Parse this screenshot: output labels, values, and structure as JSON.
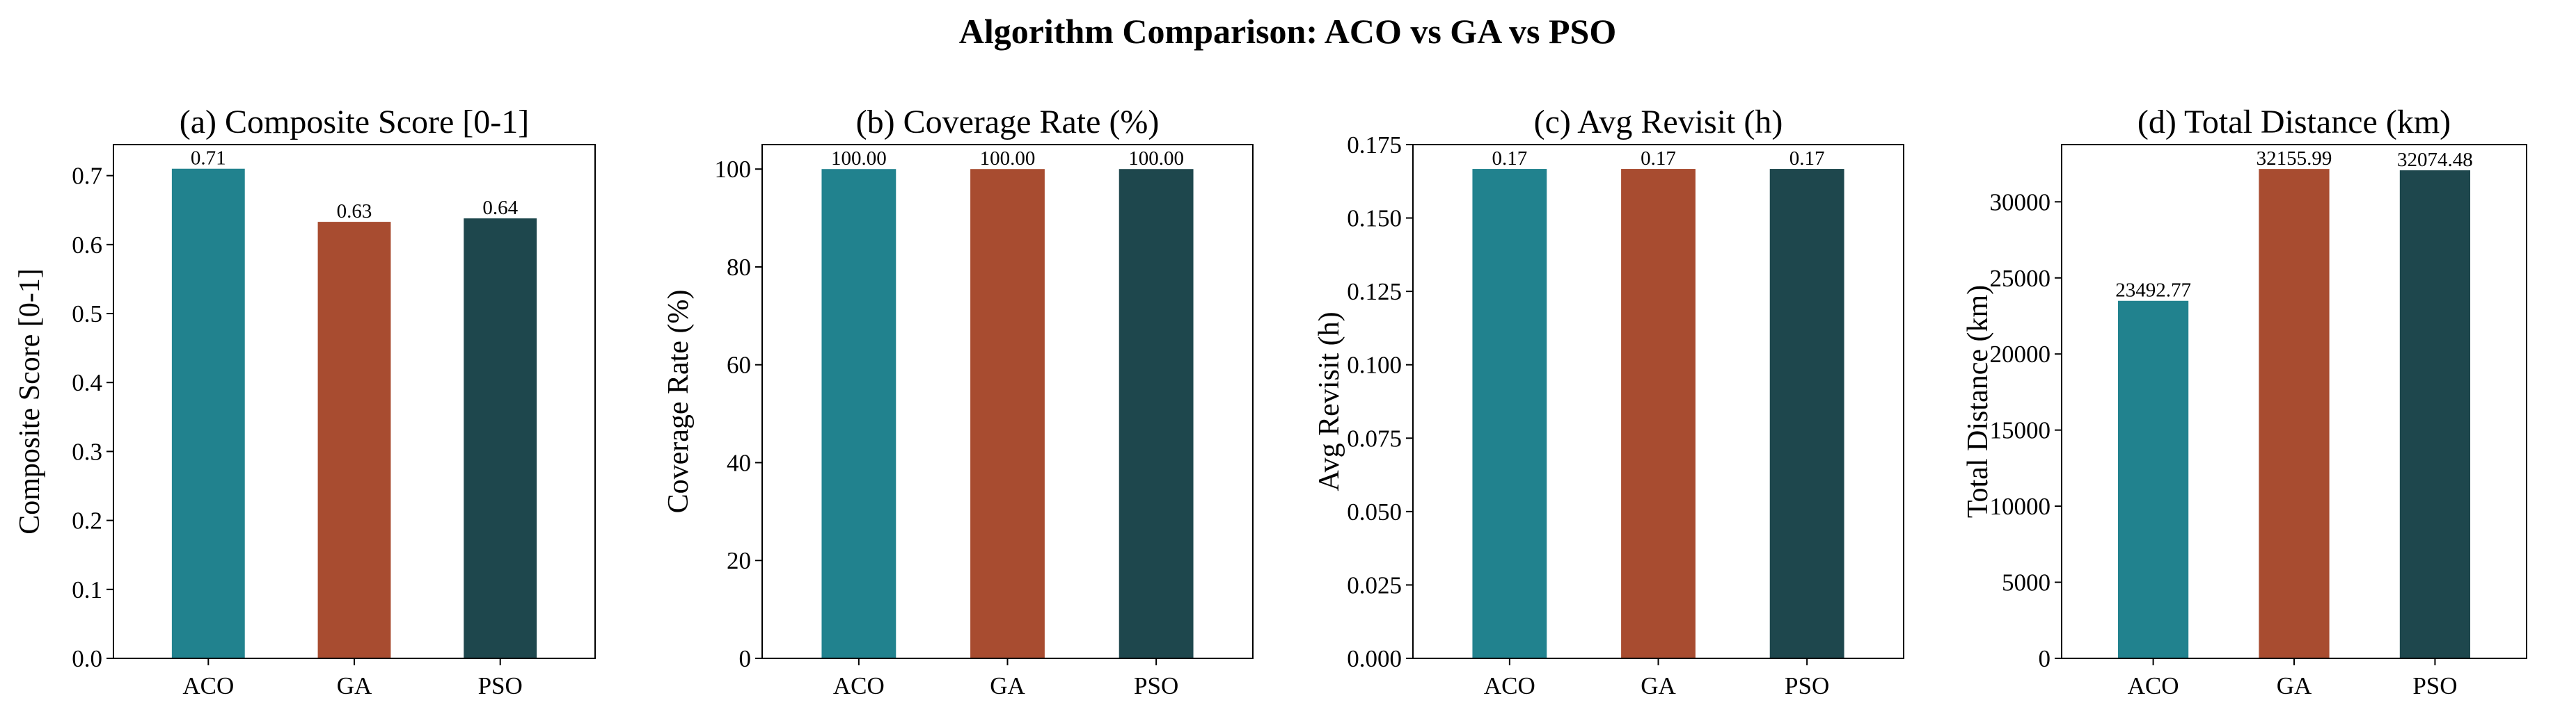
{
  "figure_title": "Algorithm Comparison: ACO vs GA vs PSO",
  "colors": {
    "ACO": "#21828E",
    "GA": "#A84C30",
    "PSO": "#1E474D"
  },
  "chart_data": [
    {
      "type": "bar",
      "title": "(a) Composite Score [0-1]",
      "xlabel": "",
      "ylabel": "Composite Score [0-1]",
      "categories": [
        "ACO",
        "GA",
        "PSO"
      ],
      "values": [
        0.71,
        0.633,
        0.638
      ],
      "data_labels": [
        "0.71",
        "0.63",
        "0.64"
      ],
      "ylim": [
        0,
        0.745
      ],
      "yticks": [
        0.0,
        0.1,
        0.2,
        0.3,
        0.4,
        0.5,
        0.6,
        0.7
      ],
      "ytick_labels": [
        "0.0",
        "0.1",
        "0.2",
        "0.3",
        "0.4",
        "0.5",
        "0.6",
        "0.7"
      ],
      "grid": false
    },
    {
      "type": "bar",
      "title": "(b) Coverage Rate (%)",
      "xlabel": "",
      "ylabel": "Coverage Rate (%)",
      "categories": [
        "ACO",
        "GA",
        "PSO"
      ],
      "values": [
        100.0,
        100.0,
        100.0
      ],
      "data_labels": [
        "100.00",
        "100.00",
        "100.00"
      ],
      "ylim": [
        0,
        105
      ],
      "yticks": [
        0,
        20,
        40,
        60,
        80,
        100
      ],
      "ytick_labels": [
        "0",
        "20",
        "40",
        "60",
        "80",
        "100"
      ],
      "grid": false
    },
    {
      "type": "bar",
      "title": "(c) Avg Revisit (h)",
      "xlabel": "",
      "ylabel": "Avg Revisit (h)",
      "categories": [
        "ACO",
        "GA",
        "PSO"
      ],
      "values": [
        0.1667,
        0.1667,
        0.1667
      ],
      "data_labels": [
        "0.17",
        "0.17",
        "0.17"
      ],
      "ylim": [
        0,
        0.175
      ],
      "yticks": [
        0.0,
        0.025,
        0.05,
        0.075,
        0.1,
        0.125,
        0.15,
        0.175
      ],
      "ytick_labels": [
        "0.000",
        "0.025",
        "0.050",
        "0.075",
        "0.100",
        "0.125",
        "0.150",
        "0.175"
      ],
      "grid": false
    },
    {
      "type": "bar",
      "title": "(d) Total Distance (km)",
      "xlabel": "",
      "ylabel": "Total Distance (km)",
      "categories": [
        "ACO",
        "GA",
        "PSO"
      ],
      "values": [
        23492.77,
        32155.99,
        32074.48
      ],
      "data_labels": [
        "23492.77",
        "32155.99",
        "32074.48"
      ],
      "ylim": [
        0,
        33760
      ],
      "yticks": [
        0,
        5000,
        10000,
        15000,
        20000,
        25000,
        30000
      ],
      "ytick_labels": [
        "0",
        "5000",
        "10000",
        "15000",
        "20000",
        "25000",
        "30000"
      ],
      "grid": false
    }
  ]
}
